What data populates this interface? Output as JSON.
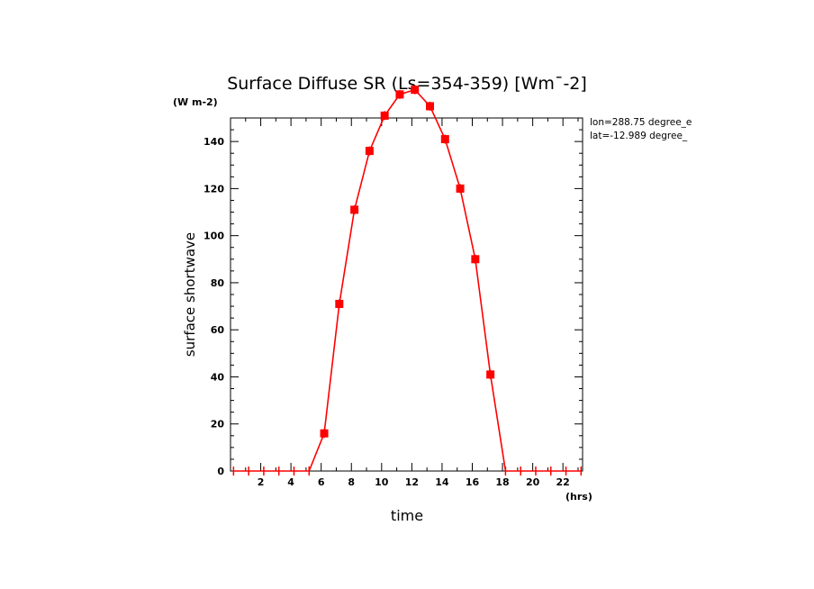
{
  "chart_data": {
    "type": "line",
    "title": "Surface Diffuse SR (Ls=354-359) [Wm¯-2]",
    "xlabel": "time",
    "ylabel": "surface shortwave",
    "x_unit": "(hrs)",
    "y_unit": "(W m-2)",
    "annotations": [
      "lon=288.75 degree_e",
      "lat=-12.989 degree_"
    ],
    "xlim": [
      0,
      23.3
    ],
    "ylim": [
      0,
      150
    ],
    "xticks": [
      2,
      4,
      6,
      8,
      10,
      12,
      14,
      16,
      18,
      20,
      22
    ],
    "yticks": [
      0,
      20,
      40,
      60,
      80,
      100,
      120,
      140
    ],
    "grid": false,
    "color": "#ff0000",
    "series": [
      {
        "x": [
          0.2,
          1.2,
          2.2,
          3.2,
          4.2,
          5.2,
          6.2,
          7.2,
          8.2,
          9.2,
          10.2,
          11.2,
          12.2,
          13.2,
          14.2,
          15.2,
          16.2,
          17.2,
          18.2,
          19.2,
          20.2,
          21.2,
          22.2,
          23.2
        ],
        "y": [
          0,
          0,
          0,
          0,
          0,
          0,
          16,
          71,
          111,
          136,
          151,
          160,
          162,
          155,
          141,
          120,
          90,
          41,
          0,
          0,
          0,
          0,
          0,
          0
        ]
      }
    ]
  }
}
